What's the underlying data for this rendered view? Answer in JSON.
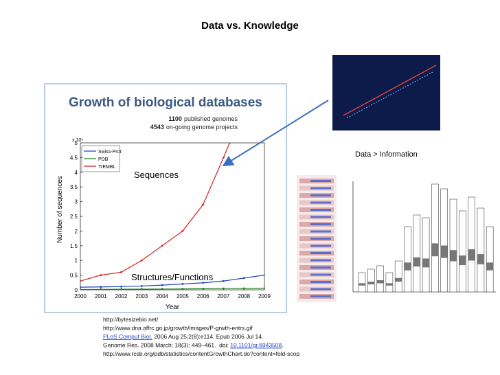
{
  "title": "Data  vs. Knowledge",
  "growth_figure": {
    "title": "Growth of biological databases",
    "annotations": [
      {
        "count": "1100",
        "text": "published genomes"
      },
      {
        "count": "4543",
        "text": "on-going genome projects"
      }
    ],
    "multiplier": "x 10⁶",
    "y_label": "Number of sequences",
    "x_label": "Year",
    "xlim": [
      2000,
      2009
    ],
    "xticks": [
      2000,
      2001,
      2002,
      2003,
      2004,
      2005,
      2006,
      2007,
      2008,
      2009
    ],
    "ylim": [
      0,
      5
    ],
    "yticks": [
      0,
      0.5,
      1,
      1.5,
      2,
      2.5,
      3,
      3.5,
      4,
      4.5,
      5
    ],
    "series": [
      {
        "name": "Swiss-Prot",
        "color": "#2040c0",
        "x": [
          2000,
          2001,
          2002,
          2003,
          2004,
          2005,
          2006,
          2007,
          2008,
          2009
        ],
        "values": [
          0.09,
          0.1,
          0.11,
          0.13,
          0.16,
          0.2,
          0.24,
          0.3,
          0.4,
          0.5
        ]
      },
      {
        "name": "PDB",
        "color": "#208020",
        "x": [
          2000,
          2001,
          2002,
          2003,
          2004,
          2005,
          2006,
          2007,
          2008,
          2009
        ],
        "values": [
          0.01,
          0.015,
          0.02,
          0.023,
          0.028,
          0.033,
          0.038,
          0.045,
          0.05,
          0.057
        ]
      },
      {
        "name": "TrEMBL",
        "color": "#d02020",
        "x": [
          2000,
          2001,
          2002,
          2003,
          2004,
          2005,
          2006,
          2007,
          2007.3
        ],
        "values": [
          0.3,
          0.5,
          0.6,
          1.0,
          1.5,
          2.0,
          2.9,
          4.5,
          5.0
        ]
      }
    ],
    "overlay_labels": [
      "Sequences",
      "Structures/Functions"
    ]
  },
  "caption": "Data > Information",
  "references": [
    {
      "text": "http://bytesizebio.net/"
    },
    {
      "text": "http://www.dna.affrc.go.jp/growth/images/P-grwth-entrs.gif"
    },
    {
      "link": "PLoS Comput Biol.",
      "text": " 2006 Aug 25;2(8):e114. Epub 2006 Jul 14."
    },
    {
      "text": "Genome Res. 2008 March; 18(3): 449–461.  doi: ",
      "link": "10.1101/gr.6943508",
      "after": "."
    },
    {
      "text": "http://www.rcsb.org/pdb/statistics/contentGrowthChart.do?content=fold-scop"
    }
  ]
}
